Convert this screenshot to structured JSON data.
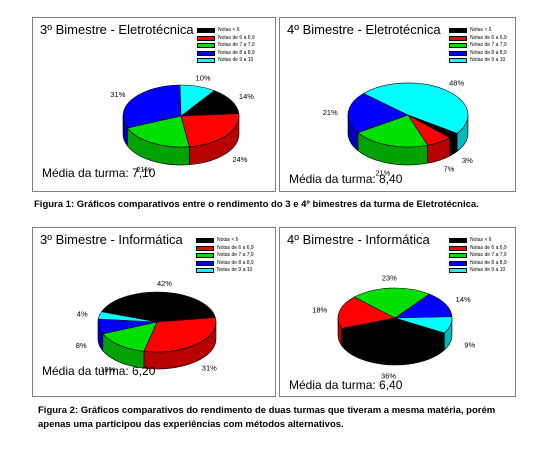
{
  "chart_data": [
    {
      "type": "pie",
      "title": "3º Bimestre - Eletrotécnica",
      "categories": [
        "Notas < 6",
        "Notas de 6 a 6,9",
        "Notas de 7 a 7,9",
        "Notas de 8 a 8,9",
        "Notas de 9 a 10"
      ],
      "values": [
        14,
        24,
        21,
        31,
        10
      ],
      "value_labels": [
        "14%",
        "24%",
        "21%",
        "31%",
        "10%"
      ],
      "note": "Média da turma: 7,10",
      "legend": "top-right"
    },
    {
      "type": "pie",
      "title": "4º Bimestre - Eletrotécnica",
      "categories": [
        "Notas < 6",
        "Notas de 6 a 6,9",
        "Notas de 7 a 7,9",
        "Notas de 8 a 8,9",
        "Notas de 9 a 10"
      ],
      "values": [
        3,
        7,
        21,
        21,
        48
      ],
      "value_labels": [
        "3%",
        "7%",
        "21%",
        "21%",
        "48%"
      ],
      "note": "Média da turma: 8,40",
      "legend": "top-right"
    },
    {
      "type": "pie",
      "title": "3º Bimestre - Informática",
      "categories": [
        "Notas < 6",
        "Notas de 6 a 6,9",
        "Notas de 7 a 7,9",
        "Notas de 8 a 8,9",
        "Notas de 9 a 10"
      ],
      "values": [
        42,
        31,
        15,
        8,
        4
      ],
      "value_labels": [
        "42%",
        "31%",
        "15%",
        "8%",
        "4%"
      ],
      "note": "Média da turma: 6,20",
      "legend": "top-right"
    },
    {
      "type": "pie",
      "title": "4º Bimestre - Informática",
      "categories": [
        "Notas < 6",
        "Notas de 6 a 6,9",
        "Notas de 7 a 7,9",
        "Notas de 8 a 8,9",
        "Notas de 9 a 10"
      ],
      "values": [
        36,
        18,
        23,
        14,
        9
      ],
      "value_labels": [
        "36%",
        "18%",
        "23%",
        "14%",
        "9%"
      ],
      "note": "Média da turma: 6,40",
      "legend": "top-right"
    }
  ],
  "colors": [
    "#000000",
    "#ff0000",
    "#00e000",
    "#0000ff",
    "#00ffff"
  ],
  "captions": {
    "figure1": "Figura 1: Gráficos comparativos entre o rendimento do 3 e 4º bimestres da turma de Eletrotécnica.",
    "figure2_line1": "Figura 2: Gráficos comparativos do rendimento de duas turmas que tiveram a mesma matéria, porém",
    "figure2_line2": "apenas uma participou das experiências com métodos alternativos."
  }
}
